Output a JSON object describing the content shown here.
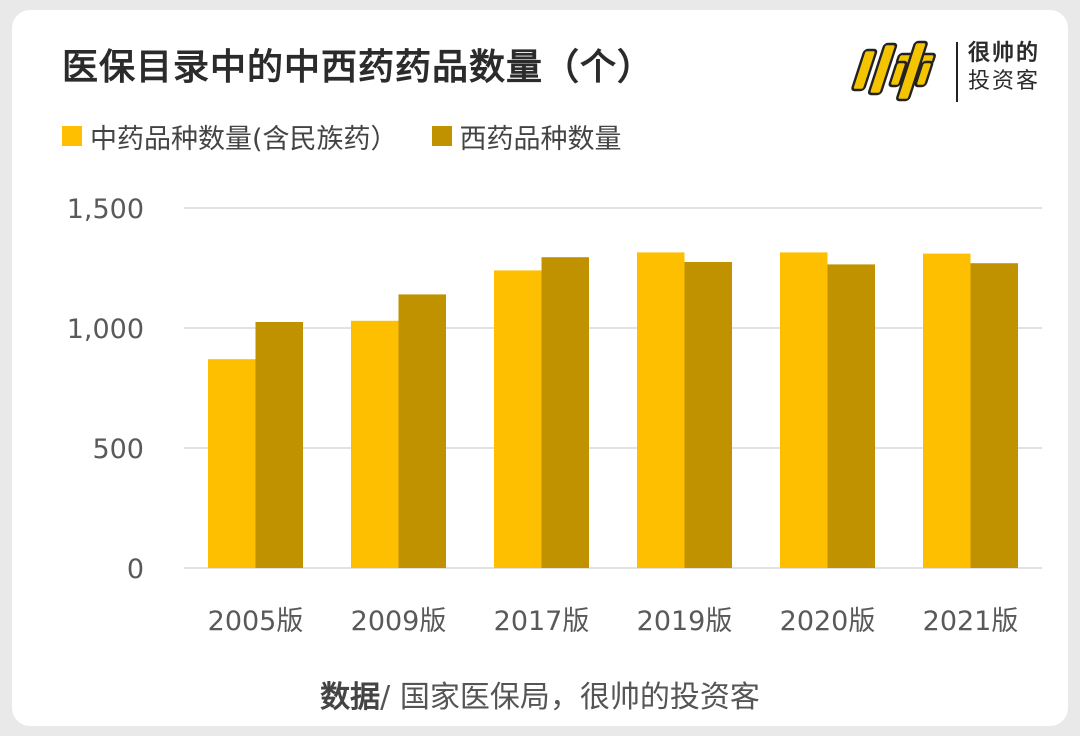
{
  "title": "医保目录中的中西药药品数量（个）",
  "brand": {
    "logo_text": "帅",
    "line1": "很帅的",
    "line2": "投资客",
    "accent": "#f5c400"
  },
  "source": {
    "bold": "数据",
    "text": "/ 国家医保局，很帅的投资客"
  },
  "colors": {
    "series1": "#fdbf00",
    "series2": "#c19200",
    "grid": "#d9d9d9",
    "tick": "#595959"
  },
  "chart_data": {
    "type": "bar",
    "title": "医保目录中的中西药药品数量（个）",
    "categories": [
      "2005版",
      "2009版",
      "2017版",
      "2019版",
      "2020版",
      "2021版"
    ],
    "series": [
      {
        "name": "中药品种数量(含民族药）",
        "values": [
          870,
          1030,
          1240,
          1315,
          1315,
          1310
        ],
        "color": "#fdbf00"
      },
      {
        "name": "西药品种数量",
        "values": [
          1025,
          1140,
          1295,
          1275,
          1265,
          1270
        ],
        "color": "#c19200"
      }
    ],
    "yticks": [
      "0",
      "500",
      "1,000",
      "1,500"
    ],
    "ytick_values": [
      0,
      500,
      1000,
      1500
    ],
    "ylim": [
      0,
      1500
    ],
    "grid": true,
    "legend_position": "top-left"
  }
}
